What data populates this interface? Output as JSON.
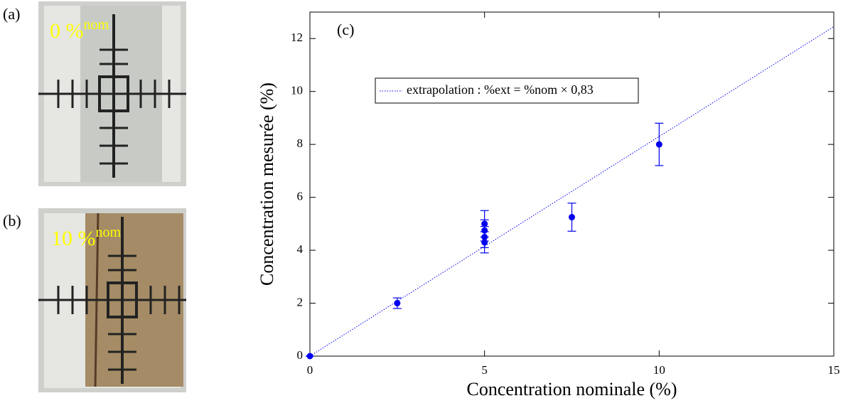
{
  "panels": [
    {
      "label": "(a)",
      "text": "0 %",
      "superscript": "nom"
    },
    {
      "label": "(b)",
      "text": "10 %",
      "superscript": "nom"
    }
  ],
  "chart_data": {
    "type": "scatter",
    "annotation": "(c)",
    "x_label": "Concentration nominale (%)",
    "y_label": "Concentration mesurée (%)",
    "xlim": [
      0,
      15
    ],
    "xticks": [
      0,
      5,
      10,
      15
    ],
    "ylim": [
      0,
      13
    ],
    "yticks": [
      0,
      2,
      4,
      6,
      8,
      10,
      12
    ],
    "legend": "upper left",
    "series": [
      {
        "color": "#0000ee",
        "x": [
          0,
          2.5,
          5,
          5,
          5,
          5,
          7.5,
          10
        ],
        "values": [
          0,
          2,
          4.3,
          4.5,
          4.75,
          5,
          5.25,
          8
        ],
        "errors": [
          0,
          0.2,
          0.4,
          0.4,
          0.4,
          0.5,
          0.53,
          0.8
        ]
      },
      {
        "name": "extrapolation : %ext = %nom × 0,83",
        "color": "#0000ee",
        "x": [
          0,
          15
        ],
        "values": [
          0,
          12.45
        ]
      }
    ]
  }
}
